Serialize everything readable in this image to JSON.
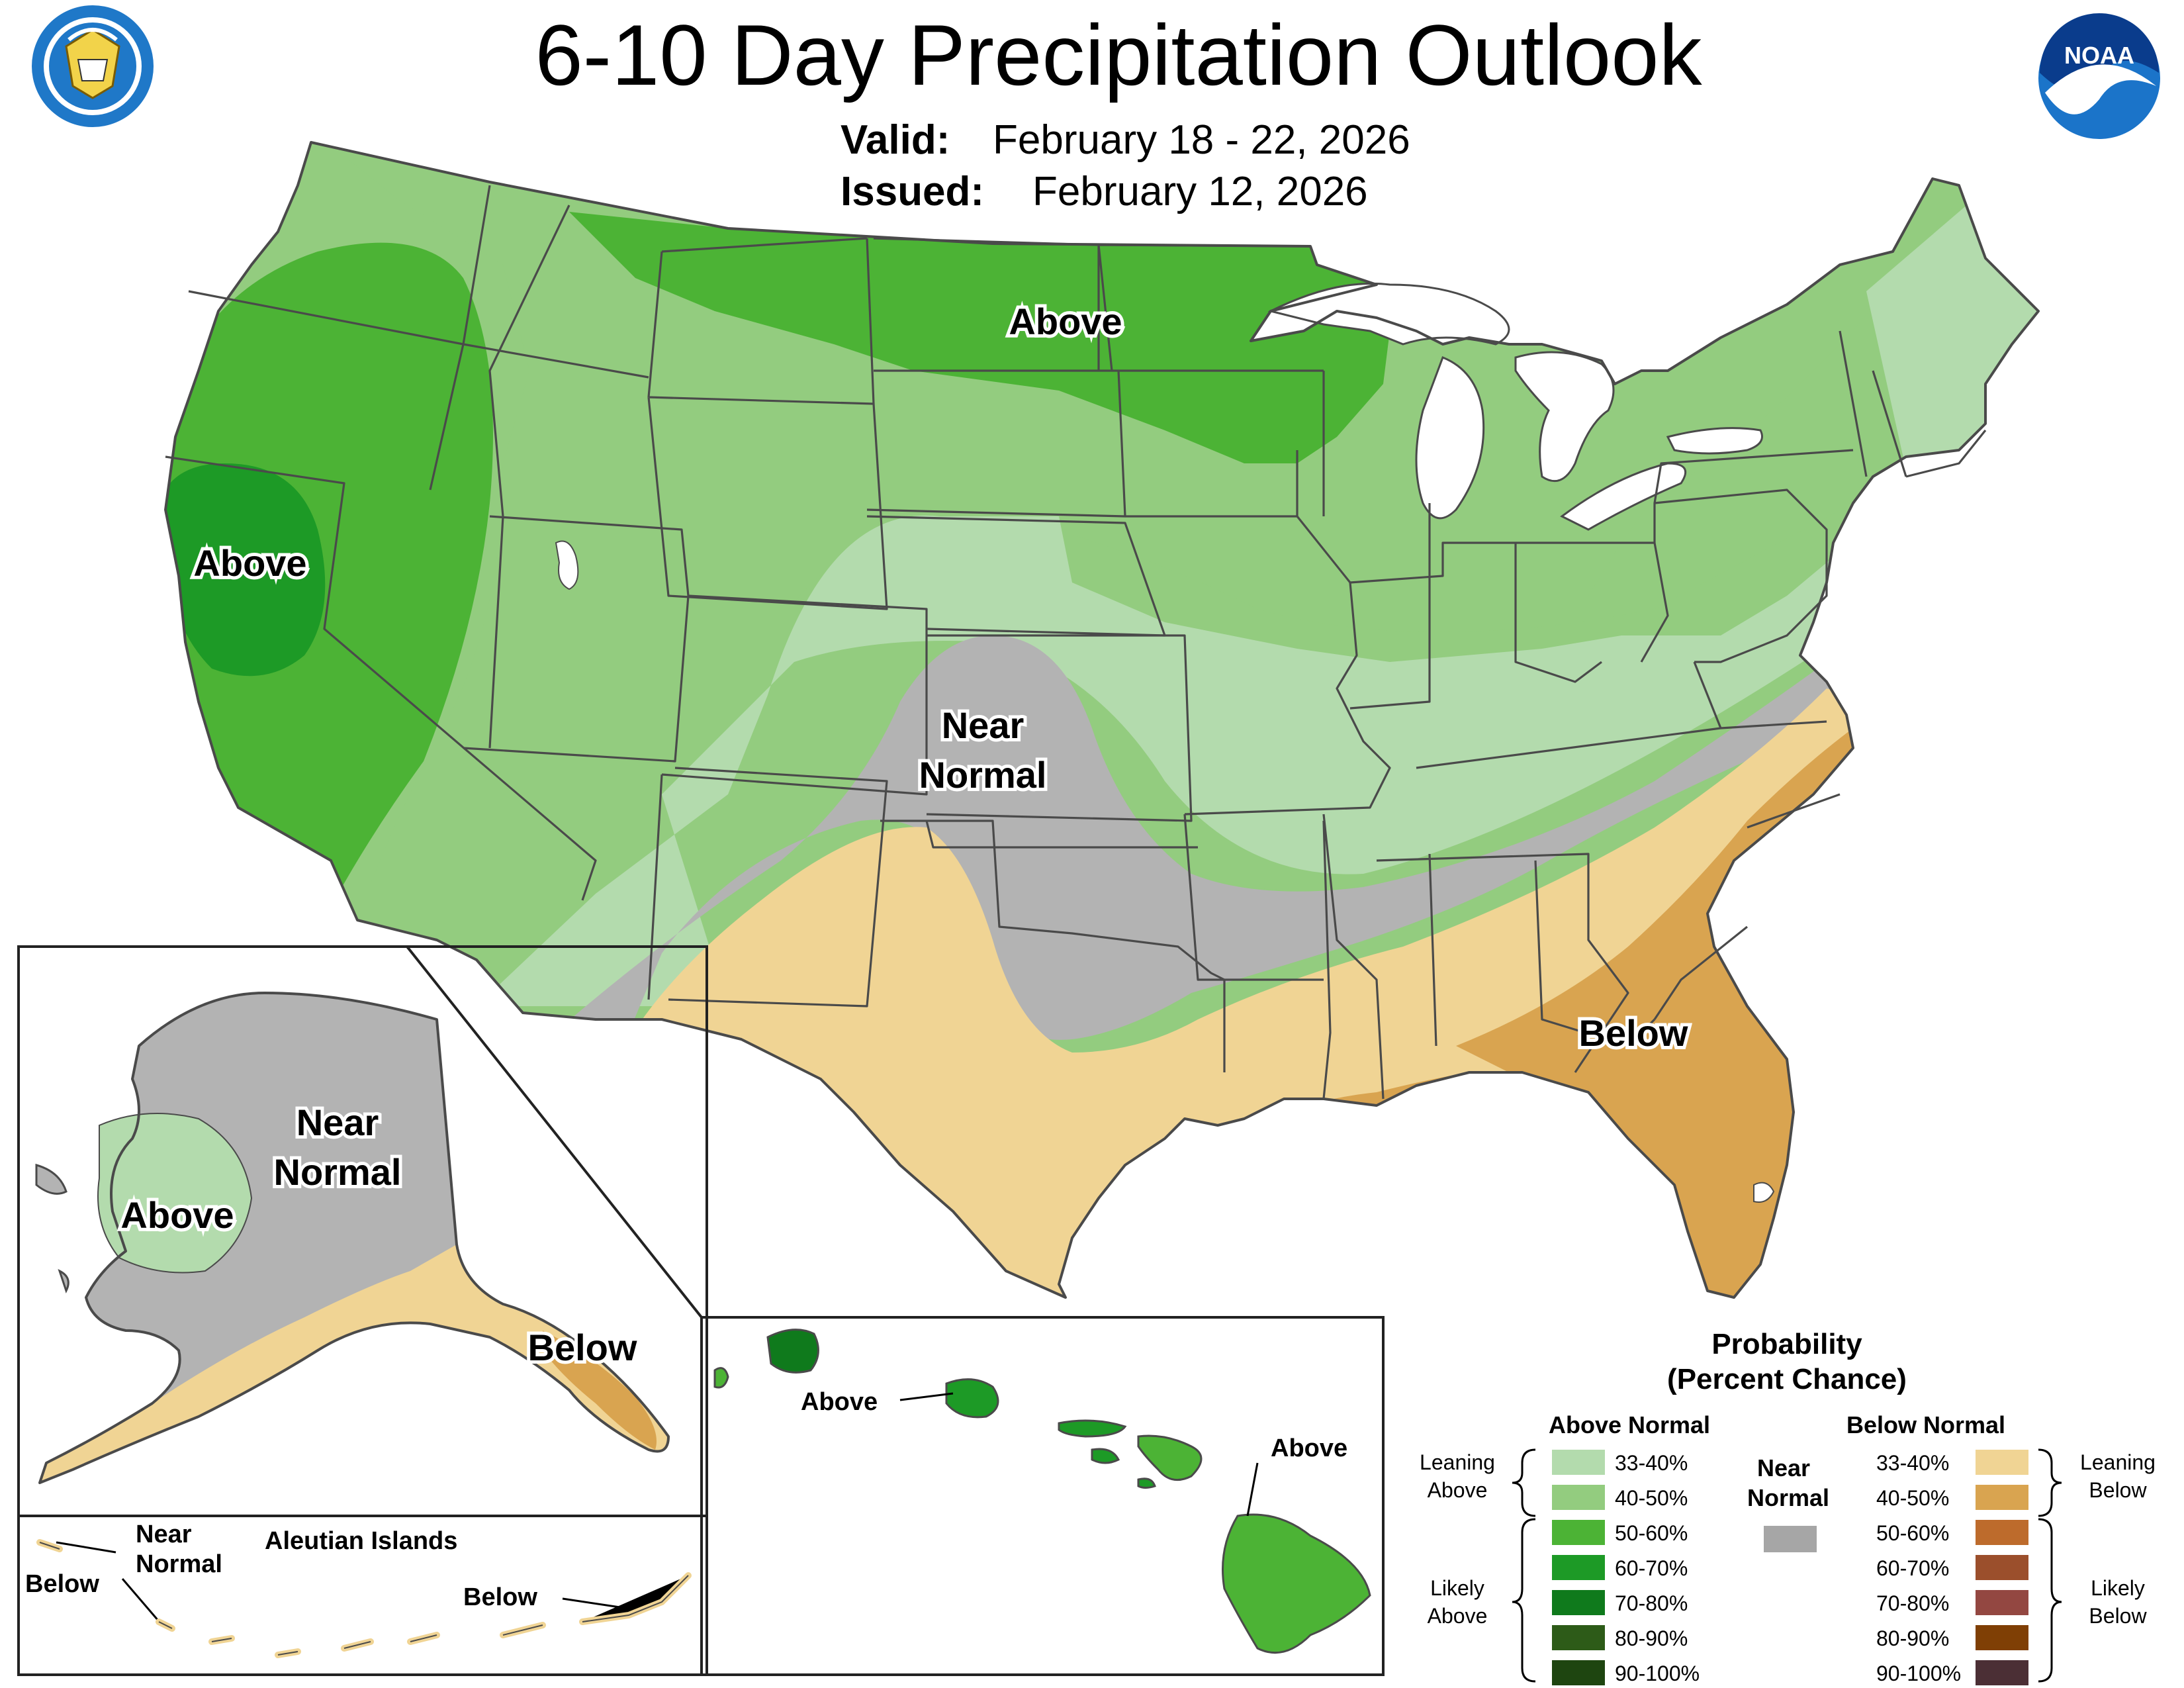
{
  "title": "6-10 Day Precipitation Outlook",
  "valid_label": "Valid:",
  "valid_value": "February 18 - 22, 2026",
  "issued_label": "Issued:",
  "issued_value": "February 12, 2026",
  "colors": {
    "above_33_40": "#b3dbad",
    "above_40_50": "#93cc7f",
    "above_50_60": "#4cb335",
    "above_60_70": "#1d9a26",
    "above_70_80": "#0f7a1c",
    "above_80_90": "#2d5b18",
    "above_90_100": "#1e4510",
    "near_normal": "#b3b3b3",
    "below_33_40": "#f0d494",
    "below_40_50": "#d9a450",
    "below_50_60": "#bd6b2c",
    "below_60_70": "#9b4f2c",
    "below_70_80": "#934741",
    "below_80_90": "#7f3f05",
    "below_90_100": "#4b2f35",
    "water": "#ffffff",
    "border": "#4a4a4a"
  },
  "map_labels": {
    "conus_above_north": "Above",
    "conus_above_west": "Above",
    "conus_near_1": "Near",
    "conus_near_2": "Normal",
    "conus_below": "Below",
    "ak_near_1": "Near",
    "ak_near_2": "Normal",
    "ak_above": "Above",
    "ak_below": "Below",
    "aleutian_title": "Aleutian Islands",
    "aleutian_near_1": "Near",
    "aleutian_near_2": "Normal",
    "aleutian_below_west": "Below",
    "aleutian_below_east": "Below",
    "hi_above_west": "Above",
    "hi_above_east": "Above"
  },
  "logos": {
    "commerce_seal_text": "DEPARTMENT OF COMMERCE · UNITED STATES OF AMERICA",
    "noaa_text": "NOAA"
  },
  "legend": {
    "title_1": "Probability",
    "title_2": "(Percent Chance)",
    "above_header": "Above Normal",
    "near_header_1": "Near",
    "near_header_2": "Normal",
    "below_header": "Below Normal",
    "leaning_above_1": "Leaning",
    "leaning_above_2": "Above",
    "likely_above_1": "Likely",
    "likely_above_2": "Above",
    "leaning_below_1": "Leaning",
    "leaning_below_2": "Below",
    "likely_below_1": "Likely",
    "likely_below_2": "Below",
    "above_rows": [
      "33-40%",
      "40-50%",
      "50-60%",
      "60-70%",
      "70-80%",
      "80-90%",
      "90-100%"
    ],
    "below_rows": [
      "33-40%",
      "40-50%",
      "50-60%",
      "60-70%",
      "70-80%",
      "80-90%",
      "90-100%"
    ]
  }
}
